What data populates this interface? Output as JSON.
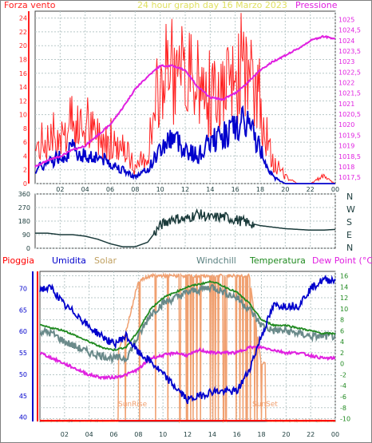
{
  "colors": {
    "wind": "#ff2020",
    "wind_avg": "#0000cc",
    "pressure": "#e020e0",
    "direction": "#1a3a3a",
    "humidity": "#0000cc",
    "solar": "#f0a070",
    "windchill": "#6a8a8a",
    "temperature": "#208a20",
    "dewpoint": "#e020e0",
    "rain": "#ff0000",
    "grid": "#b8c8c8",
    "panel_bg": "#ffffff"
  },
  "header": {
    "left": "Forza vento",
    "center": "24 hour graph day   16 Marzo 2023",
    "right": "Pressione"
  },
  "legend2": {
    "pioggia": "Pioggia",
    "umidita": "Umidita",
    "solar": "Solar",
    "windchill": "Windchill",
    "temperatura": "Temperatura",
    "dewpoint": "Dew Point (°C)"
  },
  "annotations": {
    "sunrise": "SunRise",
    "sunset": "SunSet"
  },
  "chart_data": [
    {
      "type": "line",
      "title": "24 hour graph day   16 Marzo 2023",
      "x_ticks": [
        "02",
        "04",
        "06",
        "08",
        "10",
        "12",
        "14",
        "16",
        "18",
        "20",
        "22",
        "00"
      ],
      "y_left_label": "Forza vento",
      "y_left_ticks": [
        0,
        2,
        4,
        6,
        8,
        10,
        12,
        14,
        16,
        18,
        20,
        22,
        24
      ],
      "y_left_lim": [
        0,
        25
      ],
      "y_right_label": "Pressione",
      "y_right_ticks": [
        "1017,5",
        "1018",
        "1018,5",
        "1019",
        "1019,5",
        "1020",
        "1020,5",
        "1021",
        "1021,5",
        "1022",
        "1022,5",
        "1023",
        "1023,5",
        "1024",
        "1024,5",
        "1025"
      ],
      "y_right_lim": [
        1017.2,
        1025.4
      ],
      "x_hours": [
        0,
        1,
        2,
        3,
        4,
        5,
        6,
        7,
        8,
        9,
        10,
        11,
        12,
        13,
        14,
        15,
        16,
        17,
        18,
        19,
        20,
        21,
        22,
        23,
        24
      ],
      "series": [
        {
          "name": "Forza vento",
          "values": [
            5,
            6,
            7,
            8,
            8,
            7,
            6,
            5,
            2,
            4,
            14,
            15,
            14,
            13,
            12,
            13,
            15,
            16,
            11,
            3,
            1,
            0,
            0,
            1,
            0
          ]
        },
        {
          "name": "",
          "values": [
            2,
            3,
            4,
            5,
            4,
            4,
            3,
            2,
            1,
            2,
            5,
            7,
            5,
            4,
            6,
            7,
            8,
            9,
            5,
            1,
            0,
            0,
            0,
            0,
            0
          ]
        },
        {
          "name": "Pressione",
          "values": [
            1018.0,
            1018.3,
            1018.5,
            1018.8,
            1019.0,
            1019.5,
            1020.0,
            1020.8,
            1021.7,
            1022.3,
            1022.8,
            1022.8,
            1022.6,
            1021.8,
            1021.3,
            1021.2,
            1021.5,
            1022.0,
            1022.6,
            1023.0,
            1023.3,
            1023.6,
            1024.0,
            1024.2,
            1024.1
          ]
        }
      ]
    },
    {
      "type": "line",
      "y_ticks": [
        0,
        90,
        180,
        270,
        360
      ],
      "y_lim": [
        0,
        360
      ],
      "compass": [
        "N",
        "W",
        "S",
        "E",
        "N"
      ],
      "x_hours": [
        0,
        1,
        2,
        3,
        4,
        5,
        6,
        7,
        8,
        9,
        10,
        11,
        12,
        13,
        14,
        15,
        16,
        17,
        18,
        19,
        20,
        21,
        22,
        23,
        24
      ],
      "series": [
        {
          "name": "",
          "values": [
            100,
            100,
            90,
            90,
            80,
            60,
            30,
            10,
            10,
            40,
            150,
            200,
            190,
            230,
            200,
            210,
            190,
            170,
            150,
            140,
            130,
            125,
            120,
            120,
            125
          ]
        }
      ]
    },
    {
      "type": "line",
      "y_left_ticks": [
        40,
        45,
        50,
        55,
        60,
        65,
        70
      ],
      "y_left_lim": [
        39,
        74
      ],
      "y_right_ticks": [
        -10,
        -8,
        -6,
        -4,
        -2,
        0,
        2,
        4,
        6,
        8,
        10,
        12,
        14,
        16
      ],
      "y_right_lim": [
        -10.5,
        16.8
      ],
      "x_hours": [
        0,
        1,
        2,
        3,
        4,
        5,
        6,
        7,
        8,
        9,
        10,
        11,
        12,
        13,
        14,
        15,
        16,
        17,
        18,
        19,
        20,
        21,
        22,
        23,
        24
      ],
      "series": [
        {
          "name": "Umidita",
          "values": [
            70,
            70,
            66,
            64,
            61,
            59,
            57,
            59,
            55,
            53,
            50,
            47,
            44,
            45,
            46,
            46,
            46,
            51,
            59,
            66,
            66,
            66,
            70,
            72,
            72
          ]
        },
        {
          "name": "Temperatura",
          "values": [
            7,
            6.5,
            6,
            5,
            4,
            3,
            2.5,
            3,
            6,
            10,
            12,
            13,
            14,
            14.5,
            15,
            14,
            13,
            11,
            8,
            7,
            7,
            6.5,
            6,
            5.5,
            5.5
          ]
        },
        {
          "name": "Windchill",
          "values": [
            6,
            5.5,
            4,
            3,
            2,
            1.5,
            1,
            1,
            5,
            9,
            11,
            12,
            13,
            13.5,
            14,
            13,
            12,
            10,
            7,
            6,
            6,
            5.5,
            5,
            5,
            5
          ]
        },
        {
          "name": "Dew Point (°C)",
          "values": [
            2,
            1,
            0,
            -1,
            -2,
            -2.5,
            -2.5,
            -2,
            -1,
            1,
            1.5,
            2,
            1.5,
            2.5,
            2,
            2,
            2,
            3,
            3,
            2.5,
            2,
            2,
            1.5,
            1,
            1
          ]
        },
        {
          "name": "Solar",
          "values": [
            0,
            0,
            0,
            0,
            0,
            0,
            0,
            6,
            15,
            16,
            16,
            16,
            16,
            16,
            16,
            16,
            16,
            16,
            0,
            0,
            0,
            0,
            0,
            0,
            0
          ]
        },
        {
          "name": "Pioggia",
          "values": [
            0,
            0,
            0,
            0,
            0,
            0,
            0,
            0,
            0,
            0,
            0,
            0,
            0,
            0,
            0,
            0,
            0,
            0,
            0,
            0,
            0,
            0,
            0,
            0,
            0
          ]
        }
      ]
    }
  ]
}
